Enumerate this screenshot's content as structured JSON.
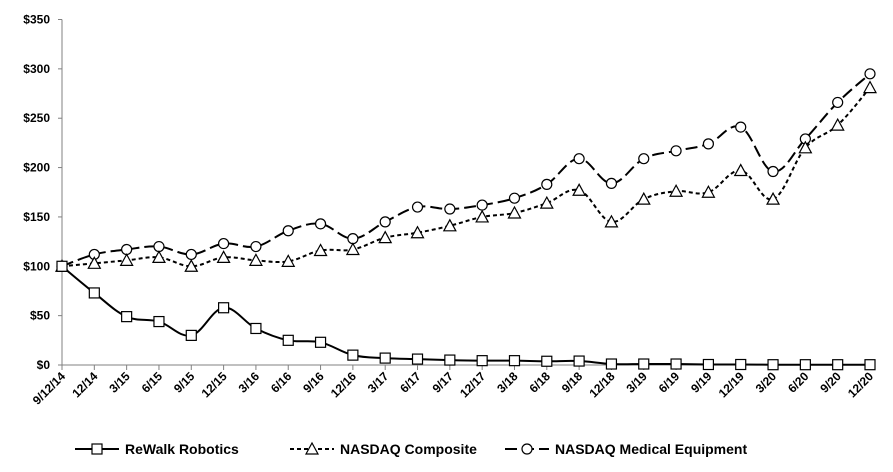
{
  "chart_data": {
    "type": "line",
    "title": "",
    "xlabel": "",
    "ylabel": "",
    "ylim": [
      0,
      350
    ],
    "y_ticks": [
      "$0",
      "$50",
      "$100",
      "$150",
      "$200",
      "$250",
      "$300",
      "$350"
    ],
    "y_tick_values": [
      0,
      50,
      100,
      150,
      200,
      250,
      300,
      350
    ],
    "grid": false,
    "legend_position": "bottom",
    "categories": [
      "9/12/14",
      "12/14",
      "3/15",
      "6/15",
      "9/15",
      "12/15",
      "3/16",
      "6/16",
      "9/16",
      "12/16",
      "3/17",
      "6/17",
      "9/17",
      "12/17",
      "3/18",
      "6/18",
      "9/18",
      "12/18",
      "3/19",
      "6/19",
      "9/19",
      "12/19",
      "3/20",
      "6/20",
      "9/20",
      "12/20"
    ],
    "series": [
      {
        "name": "ReWalk Robotics",
        "marker": "square",
        "line_style": "solid",
        "color": "#000000",
        "values": [
          100,
          73,
          49,
          44,
          30,
          58,
          37,
          25,
          23,
          10,
          7,
          6,
          5,
          4.4,
          4.4,
          3.8,
          4,
          1,
          1,
          1,
          0.5,
          0.5,
          0.3,
          0.3,
          0.3,
          0.3
        ]
      },
      {
        "name": "NASDAQ Composite",
        "marker": "triangle",
        "line_style": "short-dash",
        "color": "#000000",
        "values": [
          100,
          103,
          106,
          109,
          100,
          109,
          106,
          105,
          116,
          117,
          129,
          134,
          141,
          150,
          154,
          164,
          177,
          145,
          168,
          176,
          175,
          197,
          168,
          220,
          243,
          281
        ]
      },
      {
        "name": "NASDAQ Medical Equipment",
        "marker": "circle",
        "line_style": "long-dash",
        "color": "#000000",
        "values": [
          100,
          112,
          117,
          120,
          112,
          123,
          120,
          136,
          143,
          128,
          145,
          160,
          158,
          162,
          169,
          183,
          209,
          184,
          209,
          217,
          224,
          241,
          196,
          229,
          266,
          295
        ]
      }
    ]
  }
}
